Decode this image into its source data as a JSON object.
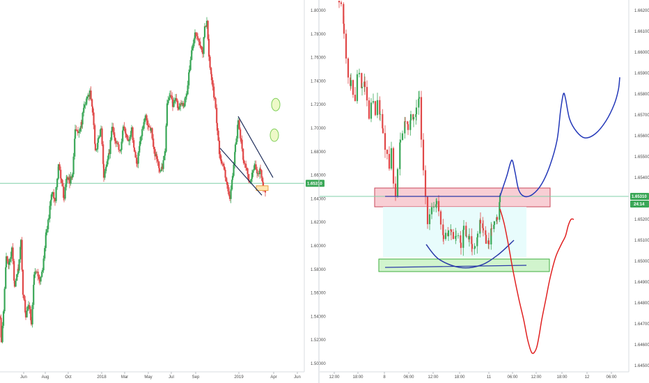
{
  "chart_data": [
    {
      "type": "candlestick",
      "title": "",
      "xlabel": "",
      "ylabel": "",
      "x_ticks": [
        "Jun",
        "Aug",
        "Oct",
        "2018",
        "Mar",
        "May",
        "Jul",
        "Sep",
        "2019",
        "Apr",
        "Jun"
      ],
      "y_ticks": [
        "1.80000",
        "1.78000",
        "1.76000",
        "1.74000",
        "1.72000",
        "1.70000",
        "1.68000",
        "1.66000",
        "1.64000",
        "1.62000",
        "1.60000",
        "1.58000",
        "1.56000",
        "1.54000",
        "1.52000",
        "1.50000"
      ],
      "ylim": [
        1.495,
        1.808
      ],
      "grid": false,
      "current_price": "1.65310",
      "current_price_value": 1.6531,
      "colors": {
        "up": "#3aa757",
        "down": "#e04848",
        "price_line": "#7fcfa8"
      },
      "candle_path": [
        [
          0,
          1.54
        ],
        [
          2,
          1.52
        ],
        [
          5,
          1.545
        ],
        [
          9,
          1.59
        ],
        [
          13,
          1.585
        ],
        [
          17,
          1.6
        ],
        [
          21,
          1.565
        ],
        [
          26,
          1.58
        ],
        [
          30,
          1.605
        ],
        [
          33,
          1.56
        ],
        [
          37,
          1.54
        ],
        [
          41,
          1.55
        ],
        [
          45,
          1.535
        ],
        [
          49,
          1.575
        ],
        [
          53,
          1.58
        ],
        [
          57,
          1.57
        ],
        [
          61,
          1.58
        ],
        [
          66,
          1.61
        ],
        [
          70,
          1.625
        ],
        [
          74,
          1.645
        ],
        [
          79,
          1.64
        ],
        [
          84,
          1.67
        ],
        [
          88,
          1.655
        ],
        [
          92,
          1.64
        ],
        [
          96,
          1.66
        ],
        [
          100,
          1.655
        ],
        [
          104,
          1.66
        ],
        [
          108,
          1.7
        ],
        [
          112,
          1.695
        ],
        [
          117,
          1.705
        ],
        [
          121,
          1.72
        ],
        [
          125,
          1.725
        ],
        [
          129,
          1.73
        ],
        [
          133,
          1.715
        ],
        [
          137,
          1.68
        ],
        [
          141,
          1.69
        ],
        [
          145,
          1.7
        ],
        [
          149,
          1.66
        ],
        [
          153,
          1.67
        ],
        [
          157,
          1.68
        ],
        [
          161,
          1.7
        ],
        [
          165,
          1.69
        ],
        [
          169,
          1.685
        ],
        [
          173,
          1.68
        ],
        [
          177,
          1.7
        ],
        [
          181,
          1.695
        ],
        [
          185,
          1.69
        ],
        [
          189,
          1.7
        ],
        [
          193,
          1.68
        ],
        [
          197,
          1.67
        ],
        [
          201,
          1.69
        ],
        [
          205,
          1.7
        ],
        [
          209,
          1.71
        ],
        [
          213,
          1.7
        ],
        [
          217,
          1.7
        ],
        [
          221,
          1.68
        ],
        [
          225,
          1.675
        ],
        [
          229,
          1.665
        ],
        [
          233,
          1.665
        ],
        [
          237,
          1.68
        ],
        [
          240,
          1.72
        ],
        [
          244,
          1.73
        ],
        [
          248,
          1.72
        ],
        [
          252,
          1.725
        ],
        [
          256,
          1.715
        ],
        [
          260,
          1.72
        ],
        [
          264,
          1.72
        ],
        [
          268,
          1.73
        ],
        [
          272,
          1.75
        ],
        [
          276,
          1.77
        ],
        [
          280,
          1.78
        ],
        [
          284,
          1.775
        ],
        [
          288,
          1.77
        ],
        [
          291,
          1.765
        ],
        [
          294,
          1.785
        ],
        [
          297,
          1.79
        ],
        [
          300,
          1.76
        ],
        [
          304,
          1.74
        ],
        [
          308,
          1.725
        ],
        [
          312,
          1.7
        ],
        [
          315,
          1.68
        ],
        [
          318,
          1.67
        ],
        [
          322,
          1.665
        ],
        [
          326,
          1.65
        ],
        [
          330,
          1.64
        ],
        [
          334,
          1.66
        ],
        [
          338,
          1.685
        ],
        [
          342,
          1.705
        ],
        [
          346,
          1.69
        ],
        [
          350,
          1.67
        ],
        [
          354,
          1.665
        ],
        [
          358,
          1.655
        ],
        [
          362,
          1.66
        ],
        [
          366,
          1.67
        ],
        [
          370,
          1.66
        ],
        [
          374,
          1.665
        ],
        [
          378,
          1.65
        ],
        [
          381,
          1.645
        ]
      ],
      "annotations": [
        {
          "kind": "line",
          "from": [
            342,
            1.71
          ],
          "to": [
            392,
            1.658
          ],
          "color": "#1e2d5a"
        },
        {
          "kind": "line",
          "from": [
            316,
            1.683
          ],
          "to": [
            376,
            1.643
          ],
          "color": "#1e2d5a"
        },
        {
          "kind": "ellipse",
          "center": [
            396,
            1.72
          ],
          "color": "#7fcf5a",
          "fill": "#eef9c8"
        },
        {
          "kind": "ellipse",
          "center": [
            394,
            1.694
          ],
          "color": "#7fcf5a",
          "fill": "#eef9c8"
        },
        {
          "kind": "box",
          "from": [
            368,
            1.651
          ],
          "to": [
            385,
            1.647
          ],
          "color": "#e8a040",
          "fill": "#ffe6b3"
        }
      ]
    },
    {
      "type": "candlestick",
      "title": "",
      "xlabel": "",
      "ylabel": "",
      "x_ticks": [
        "12:00",
        "18:00",
        "8",
        "06:00",
        "12:00",
        "18:00",
        "11",
        "06:00",
        "12:00",
        "18:00",
        "12",
        "06:00"
      ],
      "y_ticks": [
        "1.66200",
        "1.66100",
        "1.66000",
        "1.65900",
        "1.65800",
        "1.65700",
        "1.65600",
        "1.65500",
        "1.65400",
        "1.65300",
        "1.65200",
        "1.65100",
        "1.65000",
        "1.64900",
        "1.64800",
        "1.64700",
        "1.64600",
        "1.64500"
      ],
      "ylim": [
        1.6447,
        1.6624
      ],
      "grid": false,
      "current_price": "1.65310",
      "current_price_value": 1.6531,
      "countdown": "24:14",
      "colors": {
        "up": "#3aa757",
        "down": "#e04848",
        "price_line": "#7fcfa8"
      },
      "candle_path": [
        [
          487,
          1.6625
        ],
        [
          490,
          1.6622
        ],
        [
          494,
          1.661
        ],
        [
          497,
          1.6595
        ],
        [
          500,
          1.659
        ],
        [
          504,
          1.6585
        ],
        [
          507,
          1.658
        ],
        [
          510,
          1.6575
        ],
        [
          513,
          1.659
        ],
        [
          516,
          1.6588
        ],
        [
          520,
          1.6582
        ],
        [
          524,
          1.6585
        ],
        [
          527,
          1.6575
        ],
        [
          530,
          1.657
        ],
        [
          533,
          1.6578
        ],
        [
          536,
          1.6575
        ],
        [
          539,
          1.6568
        ],
        [
          542,
          1.6575
        ],
        [
          546,
          1.657
        ],
        [
          550,
          1.6562
        ],
        [
          553,
          1.6555
        ],
        [
          556,
          1.655
        ],
        [
          559,
          1.6545
        ],
        [
          562,
          1.6552
        ],
        [
          565,
          1.6535
        ],
        [
          568,
          1.653
        ],
        [
          571,
          1.6545
        ],
        [
          575,
          1.6558
        ],
        [
          578,
          1.6562
        ],
        [
          582,
          1.6568
        ],
        [
          586,
          1.6565
        ],
        [
          590,
          1.657
        ],
        [
          594,
          1.6568
        ],
        [
          598,
          1.6572
        ],
        [
          602,
          1.6578
        ],
        [
          605,
          1.656
        ],
        [
          608,
          1.6545
        ],
        [
          611,
          1.653
        ],
        [
          614,
          1.6517
        ],
        [
          617,
          1.6522
        ],
        [
          620,
          1.6528
        ],
        [
          623,
          1.6525
        ],
        [
          627,
          1.6528
        ],
        [
          630,
          1.6522
        ],
        [
          633,
          1.6518
        ],
        [
          637,
          1.6512
        ],
        [
          640,
          1.6515
        ],
        [
          644,
          1.6513
        ],
        [
          648,
          1.6515
        ],
        [
          651,
          1.651
        ],
        [
          655,
          1.6513
        ],
        [
          658,
          1.6512
        ],
        [
          662,
          1.6508
        ],
        [
          666,
          1.6515
        ],
        [
          670,
          1.651
        ],
        [
          674,
          1.6513
        ],
        [
          678,
          1.6508
        ],
        [
          682,
          1.6505
        ],
        [
          686,
          1.6512
        ],
        [
          690,
          1.652
        ],
        [
          694,
          1.6515
        ],
        [
          698,
          1.651
        ],
        [
          702,
          1.6508
        ],
        [
          706,
          1.6515
        ],
        [
          710,
          1.652
        ],
        [
          714,
          1.6522
        ],
        [
          718,
          1.653
        ]
      ],
      "annotations": [
        {
          "kind": "zone",
          "from": [
            538,
            1.6535
          ],
          "to": [
            790,
            1.6526
          ],
          "color": "#c9475a",
          "fill": "#f7c6cc"
        },
        {
          "kind": "zone",
          "from": [
            550,
            1.6526
          ],
          "to": [
            756,
            1.6502
          ],
          "color": "none",
          "fill": "#e4fbfb"
        },
        {
          "kind": "zone",
          "from": [
            544,
            1.6501
          ],
          "to": [
            789,
            1.6495
          ],
          "color": "#3fae3f",
          "fill": "#c9f2c4"
        },
        {
          "kind": "line",
          "from": [
            553,
            1.6531
          ],
          "to": [
            718,
            1.6531
          ],
          "color": "#2a3aa8"
        },
        {
          "kind": "line",
          "from": [
            553,
            1.6497
          ],
          "to": [
            756,
            1.6498
          ],
          "color": "#2a3aa8"
        },
        {
          "kind": "curve",
          "color": "#2a3aa8",
          "points": [
            [
              612,
              1.6508
            ],
            [
              630,
              1.6501
            ],
            [
              660,
              1.6497
            ],
            [
              690,
              1.6498
            ],
            [
              715,
              1.6503
            ],
            [
              738,
              1.651
            ]
          ]
        },
        {
          "kind": "curve",
          "color": "#2237b8",
          "points": [
            [
              718,
              1.6531
            ],
            [
              722,
              1.6535
            ],
            [
              728,
              1.6541
            ],
            [
              733,
              1.6547
            ],
            [
              736,
              1.6548
            ],
            [
              740,
              1.6542
            ],
            [
              745,
              1.6534
            ],
            [
              753,
              1.6531
            ],
            [
              765,
              1.6532
            ],
            [
              778,
              1.6537
            ],
            [
              790,
              1.6546
            ],
            [
              800,
              1.6558
            ],
            [
              805,
              1.6572
            ],
            [
              809,
              1.658
            ],
            [
              812,
              1.6578
            ],
            [
              818,
              1.6568
            ],
            [
              828,
              1.6562
            ],
            [
              840,
              1.6559
            ],
            [
              855,
              1.6561
            ],
            [
              870,
              1.6567
            ],
            [
              882,
              1.6575
            ],
            [
              888,
              1.6582
            ],
            [
              890,
              1.6588
            ]
          ]
        },
        {
          "kind": "curve",
          "color": "#e02020",
          "points": [
            [
              718,
              1.6525
            ],
            [
              724,
              1.6518
            ],
            [
              730,
              1.6508
            ],
            [
              737,
              1.6495
            ],
            [
              745,
              1.6482
            ],
            [
              752,
              1.6472
            ],
            [
              758,
              1.6462
            ],
            [
              764,
              1.6456
            ],
            [
              770,
              1.6458
            ],
            [
              774,
              1.6464
            ],
            [
              778,
              1.6472
            ],
            [
              784,
              1.6482
            ],
            [
              790,
              1.6492
            ],
            [
              798,
              1.6502
            ],
            [
              806,
              1.6508
            ],
            [
              812,
              1.6512
            ],
            [
              816,
              1.6517
            ],
            [
              820,
              1.652
            ],
            [
              824,
              1.652
            ]
          ]
        }
      ]
    }
  ]
}
